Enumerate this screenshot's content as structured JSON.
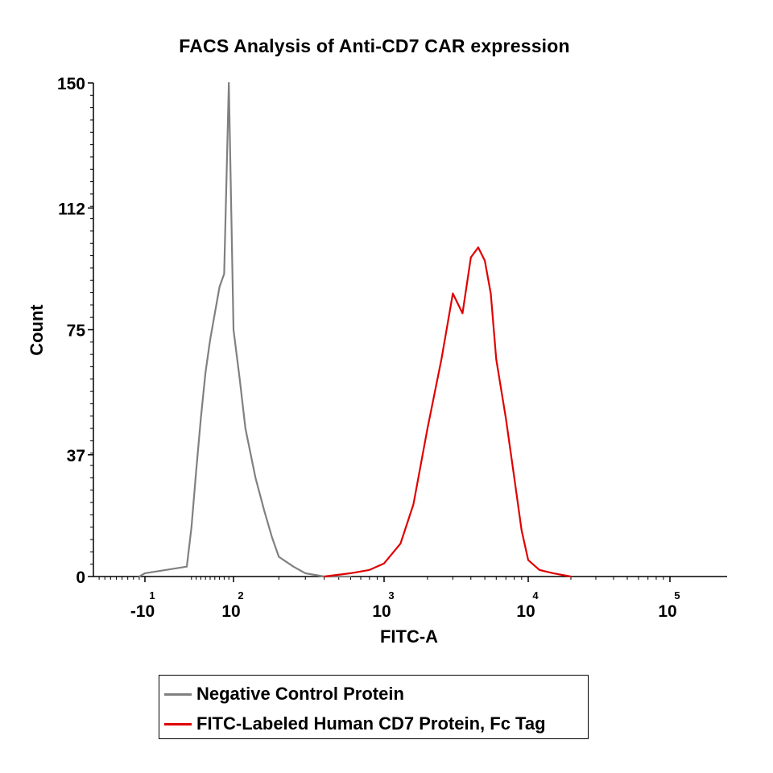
{
  "chart_data": {
    "type": "line",
    "title": "FACS Analysis of Anti-CD7 CAR expression",
    "xlabel": "FITC-A",
    "ylabel": "Count",
    "x_scale": "biexponential",
    "y_ticks": [
      0,
      37,
      75,
      112,
      150
    ],
    "ylim": [
      0,
      150
    ],
    "x_ticks": [
      {
        "label": "-10",
        "exp": "1"
      },
      {
        "label": "10",
        "exp": "2"
      },
      {
        "label": "10",
        "exp": "3"
      },
      {
        "label": "10",
        "exp": "4"
      },
      {
        "label": "10",
        "exp": "5"
      }
    ],
    "legend": "bottom",
    "grid": false,
    "series": [
      {
        "name": "Negative Control Protein",
        "color": "#808080",
        "x": [
          -20,
          -10,
          0,
          10,
          20,
          30,
          40,
          50,
          60,
          70,
          80,
          90,
          100,
          110,
          120,
          140,
          160,
          180,
          200,
          250,
          300,
          400,
          600
        ],
        "y": [
          0,
          1,
          3,
          15,
          32,
          48,
          62,
          72,
          80,
          88,
          92,
          150,
          75,
          60,
          45,
          30,
          20,
          12,
          6,
          3,
          1,
          0,
          0
        ]
      },
      {
        "name": "FITC-Labeled Human CD7 Protein, Fc Tag",
        "color": "#e00000",
        "x": [
          400,
          600,
          800,
          1000,
          1300,
          1600,
          2000,
          2500,
          3000,
          3500,
          4000,
          4500,
          5000,
          5500,
          6000,
          7000,
          8000,
          9000,
          10000,
          12000,
          15000,
          20000
        ],
        "y": [
          0,
          1,
          2,
          4,
          10,
          22,
          45,
          66,
          86,
          80,
          97,
          100,
          96,
          86,
          66,
          48,
          30,
          14,
          5,
          2,
          1,
          0
        ]
      }
    ]
  }
}
